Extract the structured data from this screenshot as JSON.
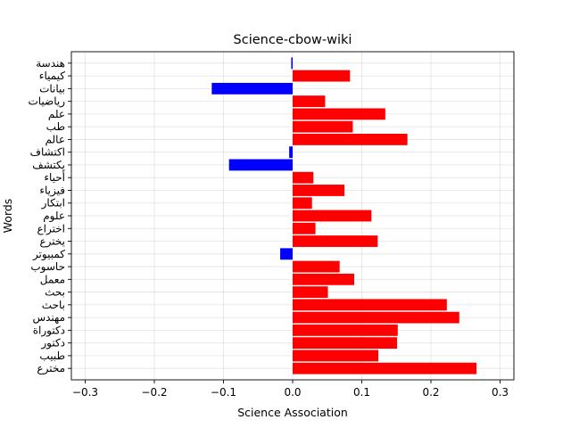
{
  "chart_data": {
    "type": "bar",
    "orientation": "horizontal",
    "title": "Science-cbow-wiki",
    "xlabel": "Science Association",
    "ylabel": "Words",
    "xlim": [
      -0.32,
      0.32
    ],
    "xticks": [
      -0.3,
      -0.2,
      -0.1,
      0.0,
      0.1,
      0.2,
      0.3
    ],
    "xtick_labels": [
      "−0.3",
      "−0.2",
      "−0.1",
      "0.0",
      "0.1",
      "0.2",
      "0.3"
    ],
    "grid": true,
    "colors": {
      "positive": "#ff0000",
      "negative": "#0000ff"
    },
    "categories": [
      "مخترع",
      "طبيب",
      "دكتور",
      "دكتوراة",
      "مهندس",
      "باحث",
      "بحث",
      "معمل",
      "حاسوب",
      "كمبيوتر",
      "يخترع",
      "اختراع",
      "علوم",
      "ابتكار",
      "فيزياء",
      "أحياء",
      "يكتشف",
      "اكتشاف",
      "عالم",
      "طب",
      "علم",
      "رياضيات",
      "بيانات",
      "كيمياء",
      "هندسة"
    ],
    "values": [
      0.266,
      0.124,
      0.151,
      0.152,
      0.241,
      0.223,
      0.051,
      0.089,
      0.068,
      -0.018,
      0.123,
      0.033,
      0.114,
      0.028,
      0.075,
      0.03,
      -0.092,
      -0.005,
      0.166,
      0.087,
      0.134,
      0.047,
      -0.117,
      0.083,
      -0.002
    ]
  }
}
